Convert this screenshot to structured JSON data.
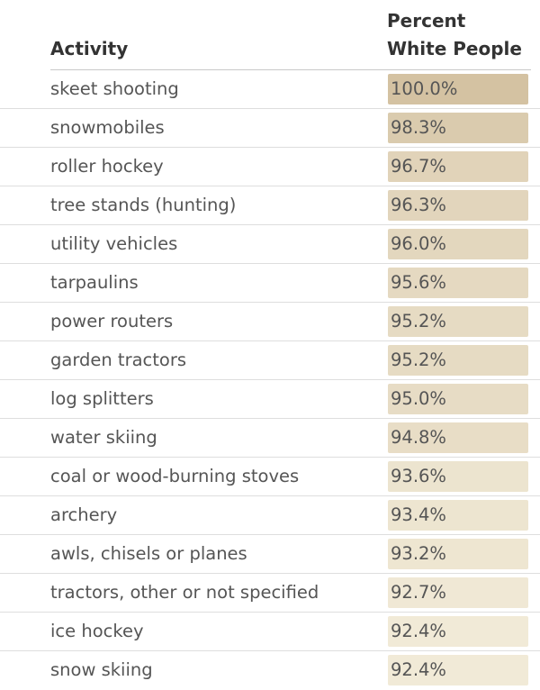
{
  "chart_data": {
    "type": "table",
    "columns": [
      "Activity",
      "Percent White People"
    ],
    "header": {
      "activity": "Activity",
      "percent_line1": "Percent",
      "percent_line2": "White People"
    },
    "rows": [
      {
        "activity": "skeet shooting",
        "percent": 100.0,
        "label": "100.0%"
      },
      {
        "activity": "snowmobiles",
        "percent": 98.3,
        "label": "98.3%"
      },
      {
        "activity": "roller hockey",
        "percent": 96.7,
        "label": "96.7%"
      },
      {
        "activity": "tree stands (hunting)",
        "percent": 96.3,
        "label": "96.3%"
      },
      {
        "activity": "utility vehicles",
        "percent": 96.0,
        "label": "96.0%"
      },
      {
        "activity": "tarpaulins",
        "percent": 95.6,
        "label": "95.6%"
      },
      {
        "activity": "power routers",
        "percent": 95.2,
        "label": "95.2%"
      },
      {
        "activity": "garden tractors",
        "percent": 95.2,
        "label": "95.2%"
      },
      {
        "activity": "log splitters",
        "percent": 95.0,
        "label": "95.0%"
      },
      {
        "activity": "water skiing",
        "percent": 94.8,
        "label": "94.8%"
      },
      {
        "activity": "coal or wood-burning stoves",
        "percent": 93.6,
        "label": "93.6%"
      },
      {
        "activity": "archery",
        "percent": 93.4,
        "label": "93.4%"
      },
      {
        "activity": "awls, chisels or planes",
        "percent": 93.2,
        "label": "93.2%"
      },
      {
        "activity": "tractors, other or not specified",
        "percent": 92.7,
        "label": "92.7%"
      },
      {
        "activity": "ice hockey",
        "percent": 92.4,
        "label": "92.4%"
      },
      {
        "activity": "snow skiing",
        "percent": 92.4,
        "label": "92.4%"
      }
    ],
    "color_scale": {
      "min_value": 92.4,
      "max_value": 100.0,
      "min_color": "#f1ead7",
      "max_color": "#d4c2a2"
    }
  }
}
